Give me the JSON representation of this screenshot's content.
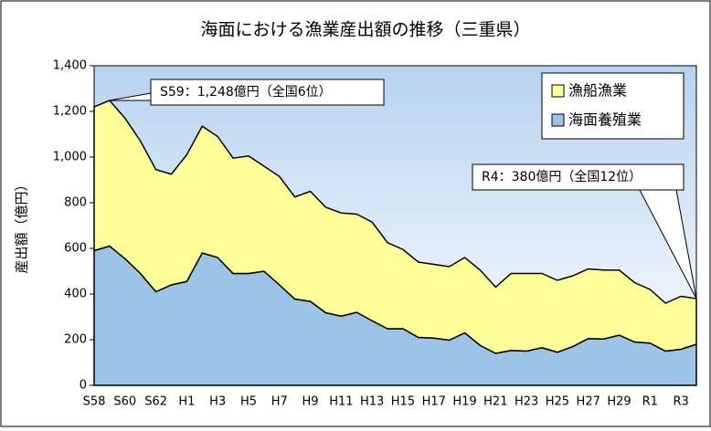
{
  "chart_data": {
    "type": "stacked_area",
    "title": "海面における漁業産出額の推移（三重県）",
    "y_label": "産出額（億円）",
    "categories": [
      "S58",
      null,
      "S60",
      null,
      "S62",
      null,
      "H1",
      null,
      "H3",
      null,
      "H5",
      null,
      "H7",
      null,
      "H9",
      null,
      "H11",
      null,
      "H13",
      null,
      "H15",
      null,
      "H17",
      null,
      "H19",
      null,
      "H21",
      null,
      "H23",
      null,
      "H25",
      null,
      "H27",
      null,
      "H29",
      null,
      "R1",
      null,
      "R3",
      null
    ],
    "series": [
      {
        "name": "海面養殖業",
        "color": "#9dc3e6",
        "values": [
          590,
          610,
          555,
          490,
          410,
          440,
          455,
          580,
          560,
          490,
          490,
          500,
          440,
          378,
          368,
          318,
          303,
          320,
          283,
          248,
          248,
          210,
          207,
          198,
          230,
          175,
          140,
          153,
          150,
          165,
          145,
          170,
          205,
          203,
          220,
          190,
          185,
          150,
          158,
          180
        ]
      },
      {
        "name": "漁船漁業",
        "color": "#ffff99",
        "values": [
          630,
          638,
          615,
          580,
          535,
          485,
          555,
          555,
          530,
          505,
          515,
          460,
          475,
          447,
          482,
          462,
          452,
          430,
          432,
          377,
          347,
          330,
          323,
          322,
          330,
          330,
          290,
          337,
          340,
          325,
          315,
          310,
          305,
          302,
          285,
          260,
          235,
          210,
          232,
          200
        ]
      }
    ],
    "ylim": [
      0,
      1400
    ],
    "yticks": [
      0,
      200,
      400,
      600,
      800,
      {
        "value": 1000,
        "label": "1,000"
      },
      {
        "value": 1200,
        "label": "1,200"
      },
      {
        "value": 1400,
        "label": "1,400"
      }
    ],
    "legend": "upper right",
    "annotations": [
      "S59：1,248億円（全国6位）",
      "R4：380億円（全国12位）"
    ]
  }
}
